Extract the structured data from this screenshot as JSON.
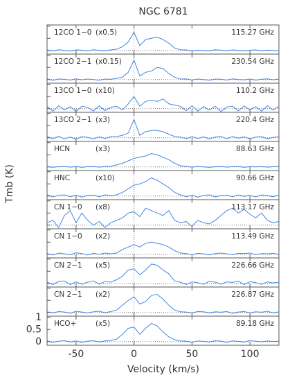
{
  "chart_data": {
    "type": "line",
    "title": "NGC 6781",
    "xlabel": "Velocity (km/s)",
    "ylabel": "Tmb (K)",
    "color": "#3f86e3",
    "xlim": [
      -75,
      125
    ],
    "xticks": [
      -50,
      0,
      50,
      100
    ],
    "ylim": [
      -0.15,
      1.05
    ],
    "yticks": [
      0,
      0.5,
      1
    ],
    "x": [
      -75,
      -70,
      -65,
      -60,
      -55,
      -50,
      -45,
      -40,
      -35,
      -30,
      -25,
      -20,
      -15,
      -10,
      -5,
      0,
      5,
      10,
      15,
      20,
      25,
      30,
      35,
      40,
      45,
      50,
      55,
      60,
      65,
      70,
      75,
      80,
      85,
      90,
      95,
      100,
      105,
      110,
      115,
      120,
      125
    ],
    "series": [
      {
        "name": "12CO 1−0",
        "scale": "(x0.5)",
        "frequency": "115.27 GHz",
        "values": [
          0.02,
          -0.02,
          0.03,
          0,
          -0.03,
          0.02,
          0.01,
          -0.02,
          0.03,
          0,
          -0.01,
          0.02,
          0.05,
          0.15,
          0.35,
          0.75,
          0.2,
          0.45,
          0.5,
          0.55,
          0.45,
          0.3,
          0.1,
          0.03,
          0.02,
          -0.02,
          0.01,
          0,
          -0.02,
          0.03,
          0.01,
          -0.01,
          0.02,
          0,
          -0.02,
          0.01,
          0.02,
          -0.01,
          0.01,
          0,
          -0.02
        ]
      },
      {
        "name": "12CO 2−1",
        "scale": "(x0.15)",
        "frequency": "230.54 GHz",
        "values": [
          0.03,
          -0.03,
          0.02,
          0.01,
          -0.02,
          0.03,
          -0.01,
          0.02,
          0,
          -0.03,
          0.02,
          0.01,
          0.05,
          0.1,
          0.3,
          0.8,
          0.15,
          0.3,
          0.35,
          0.5,
          0.45,
          0.25,
          0.1,
          0.02,
          0.03,
          -0.02,
          0.02,
          0,
          -0.03,
          0.02,
          0.01,
          -0.02,
          0.03,
          0,
          -0.01,
          0.02,
          -0.02,
          0.01,
          0.03,
          -0.01,
          0.02
        ]
      },
      {
        "name": "13CO 1−0",
        "scale": "(x10)",
        "frequency": "110.2 GHz",
        "values": [
          0.1,
          -0.1,
          0.12,
          -0.05,
          0.08,
          -0.12,
          0.1,
          0.05,
          -0.1,
          0.12,
          -0.08,
          0.06,
          0.1,
          -0.05,
          0.2,
          0.5,
          0.1,
          0.3,
          0.35,
          0.3,
          0.4,
          0.2,
          0.15,
          0.1,
          -0.08,
          0.12,
          -0.1,
          0.08,
          -0.06,
          0.1,
          -0.12,
          0.07,
          0.1,
          -0.09,
          0.11,
          -0.05,
          0.08,
          -0.1,
          0.12,
          -0.06,
          0.09
        ]
      },
      {
        "name": "13CO 2−1",
        "scale": "(x3)",
        "frequency": "220.4 GHz",
        "values": [
          0.05,
          -0.04,
          0.06,
          -0.05,
          0.03,
          -0.06,
          0.05,
          0.02,
          -0.05,
          0.04,
          -0.03,
          0.05,
          0.05,
          0.1,
          0.2,
          0.75,
          0.1,
          0.25,
          0.3,
          0.3,
          0.25,
          0.15,
          0.05,
          0.03,
          -0.04,
          0.05,
          -0.03,
          0.04,
          -0.05,
          0.03,
          0.06,
          -0.04,
          0.05,
          -0.02,
          0.04,
          -0.05,
          0.03,
          0.05,
          -0.04,
          0.02,
          0.04
        ]
      },
      {
        "name": "HCN",
        "scale": "(x3)",
        "frequency": "88.63 GHz",
        "values": [
          0.02,
          -0.02,
          0.01,
          0.02,
          -0.01,
          0.02,
          -0.02,
          0.01,
          0.02,
          -0.01,
          0.02,
          0.03,
          0.08,
          0.15,
          0.25,
          0.35,
          0.4,
          0.45,
          0.55,
          0.5,
          0.4,
          0.3,
          0.15,
          0.05,
          0.02,
          -0.01,
          0.02,
          0,
          -0.02,
          0.01,
          0.02,
          -0.01,
          0.01,
          0.02,
          -0.02,
          0.01,
          0,
          0.02,
          -0.01,
          0.01,
          0.02
        ]
      },
      {
        "name": "HNC",
        "scale": "(x10)",
        "frequency": "90.66 GHz",
        "values": [
          0.05,
          -0.04,
          0.03,
          0.05,
          -0.03,
          0.04,
          -0.05,
          0.03,
          0.04,
          -0.03,
          0.05,
          0.02,
          0.05,
          0.15,
          0.3,
          0.45,
          0.5,
          0.6,
          0.75,
          0.65,
          0.5,
          0.35,
          0.15,
          0.05,
          -0.03,
          0.04,
          -0.05,
          0.03,
          0.05,
          -0.04,
          0.02,
          0.04,
          -0.03,
          0.05,
          -0.02,
          0.03,
          -0.04,
          0.05,
          0.02,
          -0.03,
          0.04
        ]
      },
      {
        "name": "CN 1−0",
        "scale": "(x8)",
        "frequency": "113.17 GHz",
        "values": [
          0.1,
          0.2,
          -0.1,
          0.4,
          0.6,
          0.1,
          0.5,
          0.2,
          0,
          0.15,
          -0.1,
          0.1,
          0.2,
          0.3,
          0.5,
          0.55,
          0.35,
          0.7,
          0.6,
          0.5,
          0.4,
          0.6,
          0.2,
          0.1,
          0.15,
          -0.05,
          0.2,
          0.1,
          0.05,
          0.2,
          0.4,
          0.6,
          0.7,
          0.5,
          0.65,
          0.45,
          0.3,
          0.5,
          0.2,
          0.1,
          0.15
        ]
      },
      {
        "name": "CN 1−0",
        "scale": "(x2)",
        "frequency": "113.49 GHz",
        "values": [
          0.03,
          -0.03,
          0.05,
          0.02,
          -0.02,
          0.06,
          0.03,
          -0.03,
          0.04,
          0,
          0.05,
          0.02,
          0.05,
          0.2,
          0.3,
          0.4,
          0.3,
          0.45,
          0.5,
          0.45,
          0.4,
          0.3,
          0.15,
          0.05,
          0.03,
          -0.02,
          0.04,
          0.02,
          -0.03,
          0.03,
          0.05,
          0.02,
          -0.02,
          0.04,
          0.03,
          0.05,
          -0.02,
          0.03,
          0.02,
          0.04,
          -0.01
        ]
      },
      {
        "name": "CN 2−1",
        "scale": "(x5)",
        "frequency": "226.66 GHz",
        "values": [
          0.05,
          -0.05,
          0.08,
          0.1,
          -0.05,
          0.06,
          -0.04,
          0.05,
          0.1,
          -0.03,
          0.08,
          0.05,
          0.15,
          0.3,
          0.55,
          0.6,
          0.35,
          0.55,
          0.8,
          0.75,
          0.55,
          0.4,
          0.1,
          0.05,
          -0.05,
          0.06,
          0.03,
          -0.04,
          0.08,
          0.05,
          -0.03,
          0.06,
          0.04,
          0.1,
          -0.05,
          0.07,
          0.03,
          -0.04,
          0.06,
          0.02,
          0.05
        ]
      },
      {
        "name": "CN 2−1",
        "scale": "(x2)",
        "frequency": "226.87 GHz",
        "values": [
          0.03,
          -0.02,
          0.04,
          0.02,
          -0.03,
          0.05,
          0.02,
          -0.02,
          0.03,
          0.05,
          -0.01,
          0.04,
          0.1,
          0.3,
          0.5,
          0.65,
          0.35,
          0.45,
          0.7,
          0.75,
          0.55,
          0.3,
          0.1,
          0.03,
          0.02,
          -0.02,
          0.04,
          0.03,
          -0.02,
          0.03,
          0.01,
          0.04,
          -0.03,
          0.02,
          0.04,
          -0.02,
          0.03,
          0.01,
          0.05,
          -0.02,
          0.03
        ]
      },
      {
        "name": "HCO+",
        "scale": "(x5)",
        "frequency": "89.18 GHz",
        "values": [
          0.03,
          -0.03,
          0.02,
          0.04,
          -0.02,
          0.03,
          -0.03,
          0.02,
          0.04,
          -0.02,
          0.03,
          0.05,
          0.1,
          0.3,
          0.55,
          0.6,
          0.3,
          0.55,
          0.75,
          0.65,
          0.4,
          0.2,
          0.08,
          0.03,
          0.02,
          -0.03,
          0.03,
          0.01,
          -0.02,
          0.04,
          0.02,
          -0.03,
          0.03,
          0.01,
          -0.02,
          0.04,
          0.02,
          -0.01,
          0.03,
          0,
          0.02
        ]
      }
    ]
  }
}
